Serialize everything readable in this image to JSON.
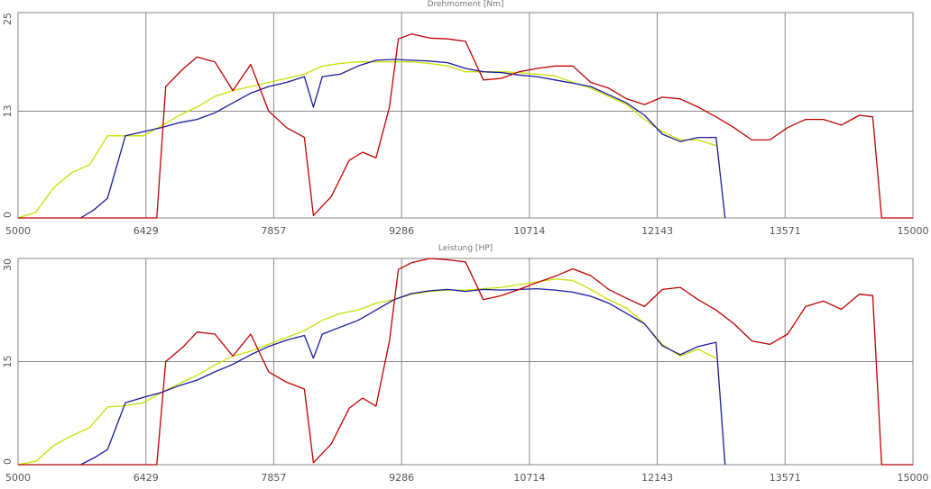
{
  "chart_data": [
    {
      "type": "line",
      "title": "Drehmoment [Nm]",
      "xlim": [
        5000,
        15000
      ],
      "ylim": [
        0,
        25
      ],
      "x_ticks": [
        "5000",
        "6429",
        "7857",
        "9286",
        "10714",
        "12143",
        "13571",
        "15000"
      ],
      "y_ticks": [
        "0",
        "13",
        "25"
      ],
      "grid": true,
      "series": [
        {
          "color": "#c8e000",
          "x": [
            5000,
            5200,
            5400,
            5600,
            5800,
            6000,
            6200,
            6400,
            6600,
            6800,
            7000,
            7200,
            7400,
            7600,
            7800,
            8000,
            8200,
            8400,
            8600,
            8800,
            9000,
            9200,
            9400,
            9600,
            9800,
            10000,
            10200,
            10400,
            10600,
            10800,
            11000,
            11200,
            11400,
            11600,
            11800,
            12000,
            12200,
            12400,
            12600,
            12800
          ],
          "y": [
            0,
            0.7,
            3.7,
            5.5,
            6.5,
            10,
            10,
            10,
            11.2,
            12.5,
            13.5,
            14.8,
            15.5,
            16,
            16.5,
            17,
            17.5,
            18.5,
            18.8,
            19,
            19,
            19,
            19,
            18.8,
            18.5,
            17.8,
            17.8,
            17.8,
            17.7,
            17.5,
            17.3,
            16.5,
            15.8,
            14.8,
            13.8,
            12,
            10.5,
            9.5,
            9.5,
            8.8
          ]
        },
        {
          "color": "#1a1a9a",
          "x": [
            5700,
            5850,
            6000,
            6200,
            6400,
            6600,
            6800,
            7000,
            7200,
            7400,
            7600,
            7800,
            8000,
            8200,
            8300,
            8400,
            8600,
            8800,
            9000,
            9200,
            9400,
            9600,
            9800,
            10000,
            10200,
            10400,
            10600,
            10800,
            11000,
            11200,
            11400,
            11600,
            11800,
            12000,
            12200,
            12400,
            12600,
            12800,
            12900
          ],
          "y": [
            0,
            1,
            2.4,
            10,
            10.5,
            11,
            11.6,
            12,
            12.8,
            14,
            15.2,
            16,
            16.5,
            17.2,
            13.5,
            17.2,
            17.5,
            18.5,
            19.2,
            19.3,
            19.2,
            19.1,
            18.9,
            18.2,
            17.8,
            17.7,
            17.4,
            17.2,
            16.8,
            16.4,
            16,
            15,
            14,
            12.5,
            10.2,
            9.3,
            9.8,
            9.8,
            0
          ]
        },
        {
          "color": "#c00000",
          "x": [
            5000,
            5200,
            5400,
            5600,
            5800,
            6000,
            6200,
            6400,
            6550,
            6650,
            6850,
            7000,
            7200,
            7400,
            7600,
            7800,
            8000,
            8200,
            8300,
            8500,
            8700,
            8850,
            9000,
            9150,
            9250,
            9400,
            9600,
            9800,
            10000,
            10200,
            10400,
            10600,
            10800,
            11000,
            11200,
            11400,
            11600,
            11800,
            12000,
            12200,
            12400,
            12600,
            12800,
            13000,
            13200,
            13400,
            13600,
            13800,
            14000,
            14200,
            14400,
            14550,
            14650,
            14800,
            15000
          ],
          "y": [
            0,
            0,
            0,
            0,
            0,
            0,
            0,
            0,
            0,
            16,
            18.2,
            19.6,
            19,
            15.5,
            18.7,
            13,
            11,
            9.8,
            0.3,
            2.6,
            7,
            8,
            7.3,
            13.5,
            21.8,
            22.4,
            21.9,
            21.8,
            21.5,
            16.8,
            17,
            17.8,
            18.2,
            18.5,
            18.5,
            16.5,
            15.8,
            14.5,
            13.8,
            14.7,
            14.5,
            13.5,
            12.3,
            11,
            9.5,
            9.5,
            11,
            12,
            12,
            11.3,
            12.5,
            12.3,
            0,
            0,
            0
          ]
        }
      ]
    },
    {
      "type": "line",
      "title": "Leistung [HP]",
      "xlim": [
        5000,
        15000
      ],
      "ylim": [
        0,
        30
      ],
      "x_ticks": [
        "5000",
        "6429",
        "7857",
        "9286",
        "10714",
        "12143",
        "13571",
        "15000"
      ],
      "y_ticks": [
        "0",
        "15",
        "30"
      ],
      "grid": true,
      "series": [
        {
          "color": "#c8e000",
          "x": [
            5000,
            5200,
            5400,
            5600,
            5800,
            6000,
            6200,
            6400,
            6600,
            6800,
            7000,
            7200,
            7400,
            7600,
            7800,
            8000,
            8200,
            8400,
            8600,
            8800,
            9000,
            9200,
            9400,
            9600,
            9800,
            10000,
            10200,
            10400,
            10600,
            10800,
            11000,
            11200,
            11400,
            11600,
            11800,
            12000,
            12200,
            12400,
            12600,
            12800
          ],
          "y": [
            0,
            0.5,
            2.8,
            4.2,
            5.4,
            8.4,
            8.6,
            9,
            10.5,
            11.8,
            13,
            14.5,
            15.8,
            16.5,
            17.5,
            18.5,
            19.5,
            21,
            22,
            22.5,
            23.5,
            24,
            24.8,
            25.2,
            25.4,
            25.4,
            25.6,
            25.8,
            26.2,
            26.6,
            27,
            26.8,
            25.5,
            24,
            22.8,
            20.5,
            17.5,
            15.8,
            16.8,
            15.5
          ]
        },
        {
          "color": "#1a1a9a",
          "x": [
            5700,
            5850,
            6000,
            6200,
            6400,
            6600,
            6800,
            7000,
            7200,
            7400,
            7600,
            7800,
            8000,
            8200,
            8300,
            8400,
            8600,
            8800,
            9000,
            9200,
            9400,
            9600,
            9800,
            10000,
            10200,
            10400,
            10600,
            10800,
            11000,
            11200,
            11400,
            11600,
            11800,
            12000,
            12200,
            12400,
            12600,
            12800,
            12900
          ],
          "y": [
            0,
            1,
            2.2,
            9,
            9.8,
            10.5,
            11.5,
            12.3,
            13.5,
            14.6,
            16,
            17.2,
            18.1,
            18.8,
            15.5,
            19,
            20,
            21,
            22.5,
            24,
            24.9,
            25.3,
            25.5,
            25.2,
            25.5,
            25.4,
            25.5,
            25.6,
            25.4,
            25.1,
            24.5,
            23.5,
            22,
            20.5,
            17.3,
            16,
            17.2,
            17.8,
            0
          ]
        },
        {
          "color": "#c00000",
          "x": [
            5000,
            5200,
            5400,
            5600,
            5800,
            6000,
            6200,
            6400,
            6550,
            6650,
            6850,
            7000,
            7200,
            7400,
            7600,
            7800,
            8000,
            8200,
            8300,
            8500,
            8700,
            8850,
            9000,
            9150,
            9250,
            9400,
            9600,
            9800,
            10000,
            10200,
            10400,
            10600,
            10800,
            11000,
            11200,
            11400,
            11600,
            11800,
            12000,
            12200,
            12400,
            12600,
            12800,
            13000,
            13200,
            13400,
            13600,
            13800,
            14000,
            14200,
            14400,
            14550,
            14650,
            14800,
            15000
          ],
          "y": [
            0,
            0,
            0,
            0,
            0,
            0,
            0,
            0,
            0,
            15,
            17.2,
            19.3,
            19,
            15.8,
            19,
            13.5,
            12,
            11,
            0.3,
            3,
            8.2,
            9.7,
            8.5,
            18,
            28.4,
            29.4,
            30,
            29.8,
            29.5,
            24,
            24.6,
            25.5,
            26.5,
            27.4,
            28.5,
            27.5,
            25.5,
            24.2,
            23,
            25.5,
            25.8,
            24,
            22.5,
            20.5,
            18,
            17.5,
            19,
            23,
            23.8,
            22.6,
            24.8,
            24.6,
            0,
            0,
            0
          ]
        }
      ]
    }
  ]
}
